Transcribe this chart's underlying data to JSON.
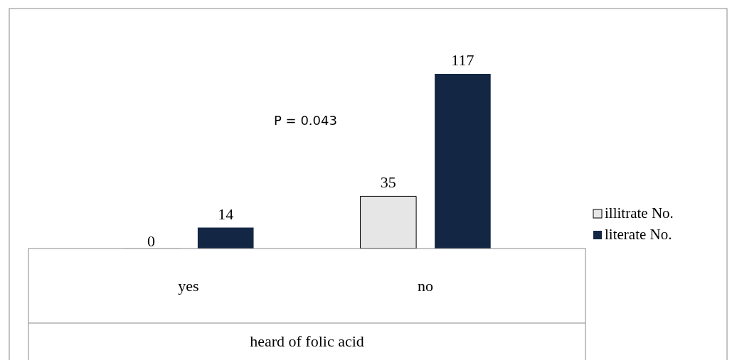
{
  "chart_data": {
    "type": "bar",
    "xlabel": "heard of folic acid",
    "categories": [
      "yes",
      "no"
    ],
    "series": [
      {
        "name": "illitrate No.",
        "color": "#e6e6e6",
        "values": [
          0,
          35
        ]
      },
      {
        "name": "literate No.",
        "color": "#132745",
        "values": [
          14,
          117
        ]
      }
    ],
    "data_labels": true,
    "legend": "right",
    "annotations": [
      "P = 0.043"
    ]
  }
}
